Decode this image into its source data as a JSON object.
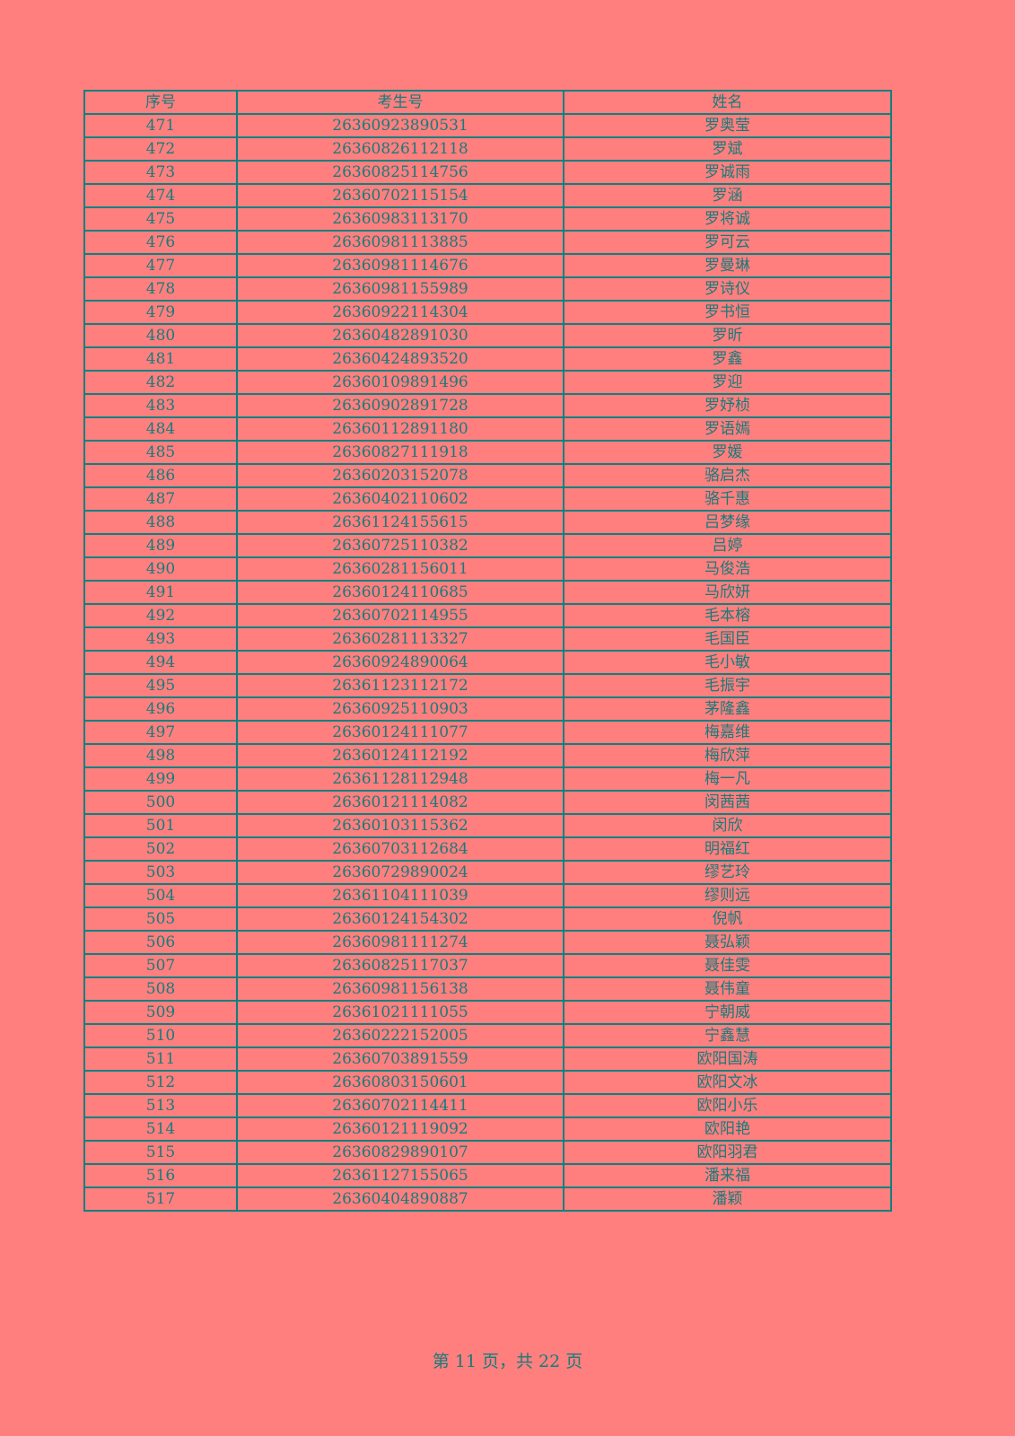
{
  "table": {
    "headers": [
      "序号",
      "考生号",
      "姓名"
    ],
    "rows": [
      [
        "471",
        "26360923890531",
        "罗奥莹"
      ],
      [
        "472",
        "26360826112118",
        "罗斌"
      ],
      [
        "473",
        "26360825114756",
        "罗诚雨"
      ],
      [
        "474",
        "26360702115154",
        "罗涵"
      ],
      [
        "475",
        "26360983113170",
        "罗将诚"
      ],
      [
        "476",
        "26360981113885",
        "罗可云"
      ],
      [
        "477",
        "26360981114676",
        "罗曼琳"
      ],
      [
        "478",
        "26360981155989",
        "罗诗仪"
      ],
      [
        "479",
        "26360922114304",
        "罗书恒"
      ],
      [
        "480",
        "26360482891030",
        "罗昕"
      ],
      [
        "481",
        "26360424893520",
        "罗鑫"
      ],
      [
        "482",
        "26360109891496",
        "罗迎"
      ],
      [
        "483",
        "26360902891728",
        "罗妤桢"
      ],
      [
        "484",
        "26360112891180",
        "罗语嫣"
      ],
      [
        "485",
        "26360827111918",
        "罗媛"
      ],
      [
        "486",
        "26360203152078",
        "骆启杰"
      ],
      [
        "487",
        "26360402110602",
        "骆千惠"
      ],
      [
        "488",
        "26361124155615",
        "吕梦缘"
      ],
      [
        "489",
        "26360725110382",
        "吕婷"
      ],
      [
        "490",
        "26360281156011",
        "马俊浩"
      ],
      [
        "491",
        "26360124110685",
        "马欣妍"
      ],
      [
        "492",
        "26360702114955",
        "毛本榕"
      ],
      [
        "493",
        "26360281113327",
        "毛国臣"
      ],
      [
        "494",
        "26360924890064",
        "毛小敏"
      ],
      [
        "495",
        "26361123112172",
        "毛振宇"
      ],
      [
        "496",
        "26360925110903",
        "茅隆鑫"
      ],
      [
        "497",
        "26360124111077",
        "梅嘉维"
      ],
      [
        "498",
        "26360124112192",
        "梅欣萍"
      ],
      [
        "499",
        "26361128112948",
        "梅一凡"
      ],
      [
        "500",
        "26360121114082",
        "闵茜茜"
      ],
      [
        "501",
        "26360103115362",
        "闵欣"
      ],
      [
        "502",
        "26360703112684",
        "明福红"
      ],
      [
        "503",
        "26360729890024",
        "缪艺玲"
      ],
      [
        "504",
        "26361104111039",
        "缪则远"
      ],
      [
        "505",
        "26360124154302",
        "倪帆"
      ],
      [
        "506",
        "26360981111274",
        "聂弘颖"
      ],
      [
        "507",
        "26360825117037",
        "聂佳雯"
      ],
      [
        "508",
        "26360981156138",
        "聂伟童"
      ],
      [
        "509",
        "26361021111055",
        "宁朝威"
      ],
      [
        "510",
        "26360222152005",
        "宁鑫慧"
      ],
      [
        "511",
        "26360703891559",
        "欧阳国涛"
      ],
      [
        "512",
        "26360803150601",
        "欧阳文冰"
      ],
      [
        "513",
        "26360702114411",
        "欧阳小乐"
      ],
      [
        "514",
        "26360121119092",
        "欧阳艳"
      ],
      [
        "515",
        "26360829890107",
        "欧阳羽君"
      ],
      [
        "516",
        "26361127155065",
        "潘来福"
      ],
      [
        "517",
        "26360404890887",
        "潘颖"
      ]
    ]
  },
  "footer": {
    "prefix": "第",
    "page": "11",
    "middle": "页，共",
    "total": "22",
    "suffix": "页"
  },
  "colors": {
    "background": "#FF7F7F",
    "border": "#0F8080",
    "text": "#167C7C"
  }
}
